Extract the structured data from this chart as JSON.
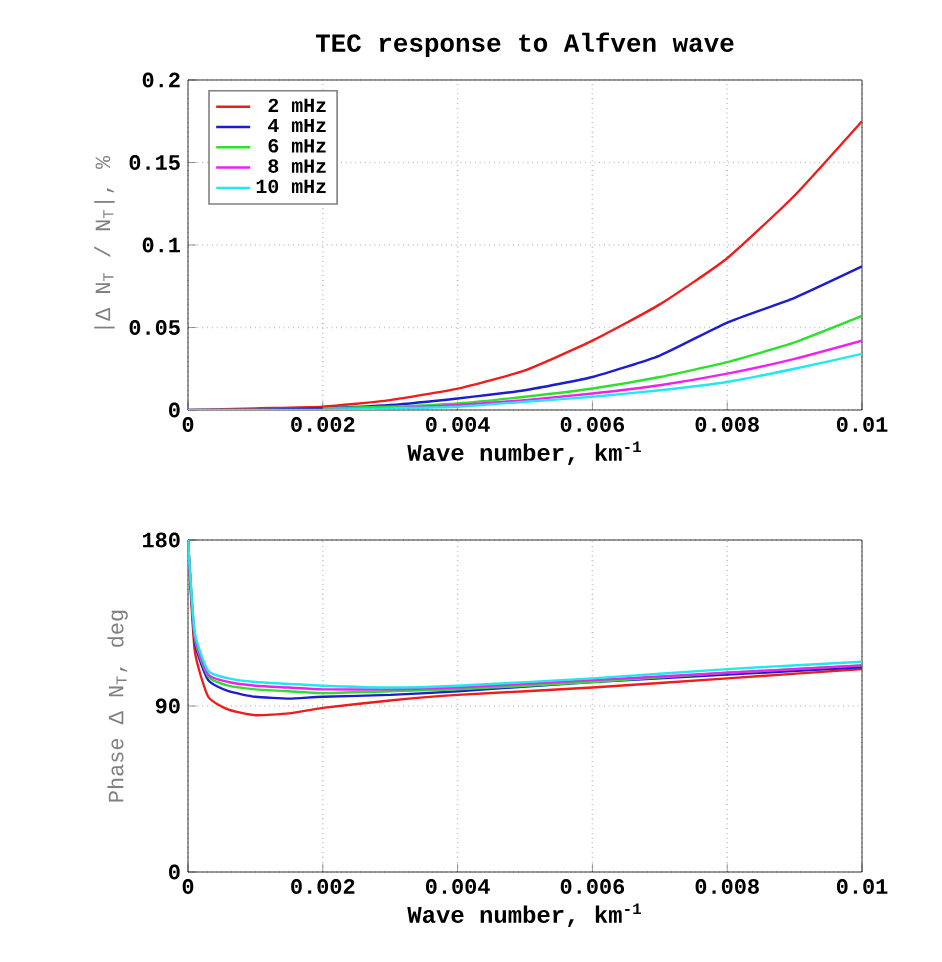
{
  "chart_data": [
    {
      "type": "line",
      "title": "TEC response to Alfven wave",
      "xlabel": "Wave number, km$^{-1}$",
      "ylabel": "|Δ N$_{T}$ / N$_{T}$|, %",
      "xlim": [
        0,
        0.01
      ],
      "ylim": [
        0,
        0.2
      ],
      "xticks": [
        0,
        0.002,
        0.004,
        0.006,
        0.008,
        0.01
      ],
      "yticks": [
        0,
        0.05,
        0.1,
        0.15,
        0.2
      ],
      "grid": true,
      "legend": "top left",
      "x": [
        0,
        0.001,
        0.002,
        0.003,
        0.004,
        0.005,
        0.006,
        0.007,
        0.008,
        0.009,
        0.01
      ],
      "series": [
        {
          "name": "2 mHz",
          "color": "#ee1c1c",
          "values": [
            0,
            0.001,
            0.002,
            0.006,
            0.013,
            0.024,
            0.042,
            0.064,
            0.092,
            0.13,
            0.175
          ]
        },
        {
          "name": "4 mHz",
          "color": "#1c1cd0",
          "values": [
            0,
            0,
            0.001,
            0.003,
            0.007,
            0.012,
            0.02,
            0.033,
            0.053,
            0.068,
            0.087
          ]
        },
        {
          "name": "6 mHz",
          "color": "#2ee02e",
          "values": [
            null,
            null,
            0.001,
            0.002,
            0.004,
            0.008,
            0.013,
            0.02,
            0.029,
            0.041,
            0.057
          ]
        },
        {
          "name": "8 mHz",
          "color": "#ee22ee",
          "values": [
            null,
            null,
            0,
            0.001,
            0.003,
            0.006,
            0.01,
            0.015,
            0.022,
            0.031,
            0.042
          ]
        },
        {
          "name": "10 mHz",
          "color": "#22e8ee",
          "values": [
            0,
            0,
            0,
            0.001,
            0.002,
            0.005,
            0.008,
            0.012,
            0.017,
            0.025,
            0.034
          ]
        }
      ]
    },
    {
      "type": "line",
      "xlabel": "Wave number, km$^{-1}$",
      "ylabel": "Phase Δ N$_{T}$, deg",
      "xlim": [
        0,
        0.01
      ],
      "ylim": [
        0,
        180
      ],
      "xticks": [
        0,
        0.002,
        0.004,
        0.006,
        0.008,
        0.01
      ],
      "yticks": [
        0,
        90,
        180
      ],
      "grid": true,
      "x": [
        0,
        0.0001,
        0.0003,
        0.0006,
        0.001,
        0.0015,
        0.002,
        0.003,
        0.004,
        0.006,
        0.008,
        0.01
      ],
      "series": [
        {
          "color": "#ee1c1c",
          "values": [
            180,
            120,
            95,
            88,
            85,
            86,
            89,
            93,
            96,
            100,
            105,
            110
          ]
        },
        {
          "color": "#1c1cd0",
          "values": [
            180,
            125,
            104,
            98,
            95,
            94,
            95,
            96,
            98,
            103,
            107,
            111
          ]
        },
        {
          "color": "#2ee02e",
          "values": [
            180,
            127,
            106,
            101,
            99,
            98,
            97,
            98,
            99,
            103,
            108,
            112
          ]
        },
        {
          "color": "#ee22ee",
          "values": [
            180,
            128,
            107,
            103,
            101,
            100,
            99,
            99,
            100,
            104,
            108,
            112
          ]
        },
        {
          "color": "#22e8ee",
          "values": [
            180,
            130,
            109,
            105,
            103,
            102,
            101,
            100,
            101,
            105,
            110,
            114
          ]
        }
      ]
    }
  ]
}
